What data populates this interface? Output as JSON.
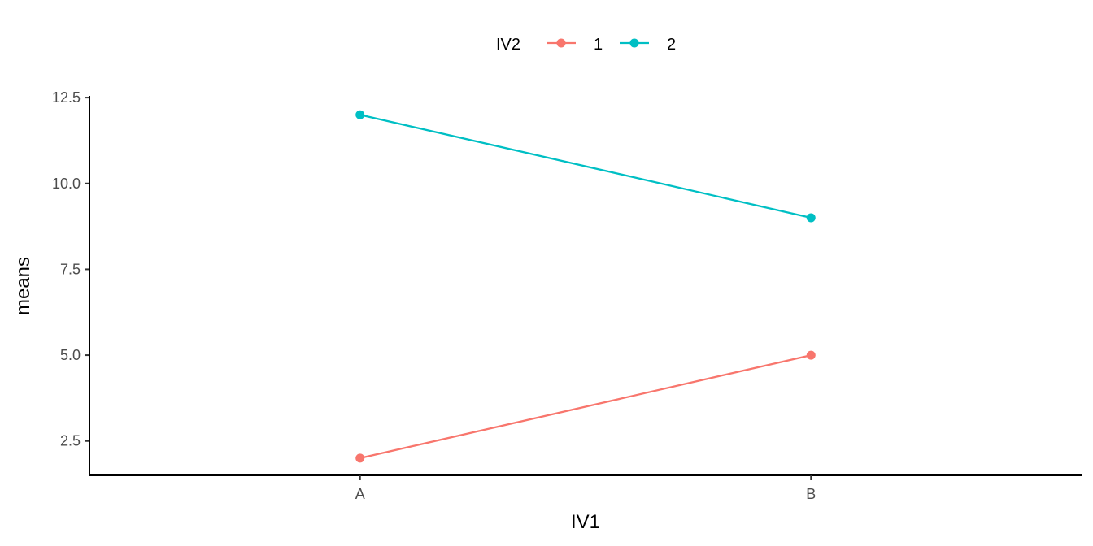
{
  "chart_data": {
    "type": "line",
    "title": "",
    "xlabel": "IV1",
    "ylabel": "means",
    "categories": [
      "A",
      "B"
    ],
    "ylim": [
      1.5,
      12.55
    ],
    "yticks": [
      2.5,
      5.0,
      7.5,
      10.0,
      12.5
    ],
    "ytick_labels": [
      "2.5",
      "5.0",
      "7.5",
      "10.0",
      "12.5"
    ],
    "grid": false,
    "legend": {
      "title": "IV2",
      "placement": "top"
    },
    "series": [
      {
        "name": "1",
        "color": "#F8766D",
        "values": [
          2,
          5
        ]
      },
      {
        "name": "2",
        "color": "#00BFC4",
        "values": [
          12,
          9
        ]
      }
    ]
  }
}
